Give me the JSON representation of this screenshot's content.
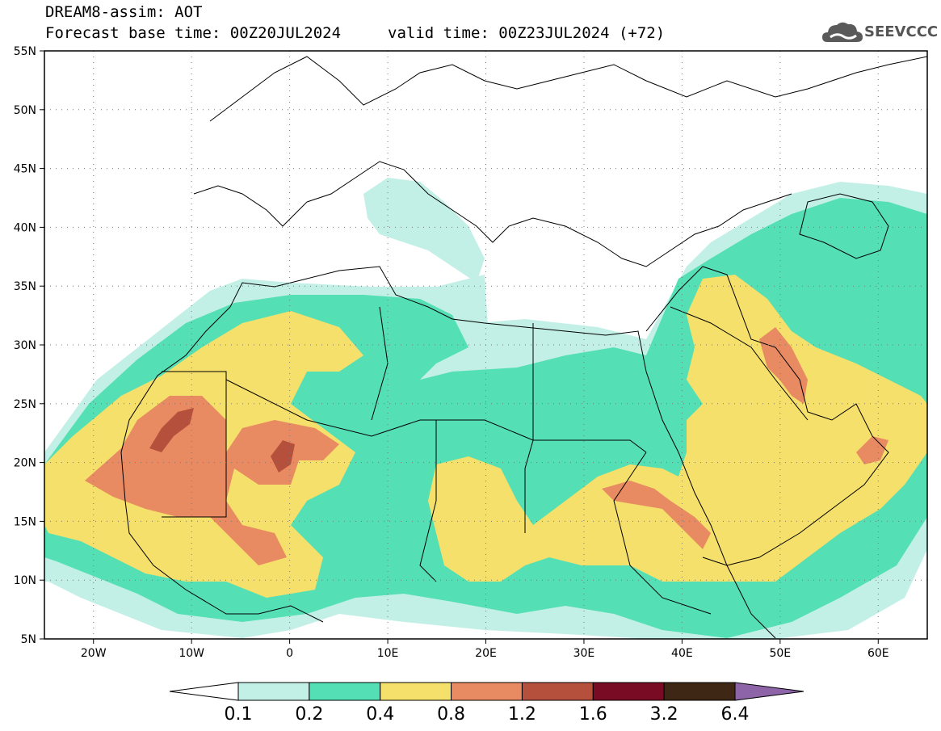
{
  "header": {
    "title": "DREAM8-assim: AOT",
    "base_time": "Forecast base time: 00Z20JUL2024",
    "valid_time": "valid time: 00Z23JUL2024 (+72)"
  },
  "logo": {
    "text": "SEEVCCC",
    "icon": "cloud-icon",
    "color": "#5a5a5a"
  },
  "map": {
    "lon_range": [
      -25,
      65
    ],
    "lat_range": [
      5,
      55
    ],
    "lat_ticks": [
      {
        "value": 55,
        "label": "55N"
      },
      {
        "value": 50,
        "label": "50N"
      },
      {
        "value": 45,
        "label": "45N"
      },
      {
        "value": 40,
        "label": "40N"
      },
      {
        "value": 35,
        "label": "35N"
      },
      {
        "value": 30,
        "label": "30N"
      },
      {
        "value": 25,
        "label": "25N"
      },
      {
        "value": 20,
        "label": "20N"
      },
      {
        "value": 15,
        "label": "15N"
      },
      {
        "value": 10,
        "label": "10N"
      },
      {
        "value": 5,
        "label": "5N"
      }
    ],
    "lon_ticks": [
      {
        "value": -20,
        "label": "20W"
      },
      {
        "value": -10,
        "label": "10W"
      },
      {
        "value": 0,
        "label": "0"
      },
      {
        "value": 10,
        "label": "10E"
      },
      {
        "value": 20,
        "label": "20E"
      },
      {
        "value": 30,
        "label": "30E"
      },
      {
        "value": 40,
        "label": "40E"
      },
      {
        "value": 50,
        "label": "50E"
      },
      {
        "value": 60,
        "label": "60E"
      }
    ]
  },
  "colorbar": {
    "levels": [
      "0.1",
      "0.2",
      "0.4",
      "0.8",
      "1.2",
      "1.6",
      "3.2",
      "6.4"
    ],
    "colors": [
      "#ffffff",
      "#c2f0e6",
      "#55dfb4",
      "#f5e06b",
      "#e88a62",
      "#b5503c",
      "#7a0b25",
      "#3f2716",
      "#8e64a8"
    ]
  }
}
